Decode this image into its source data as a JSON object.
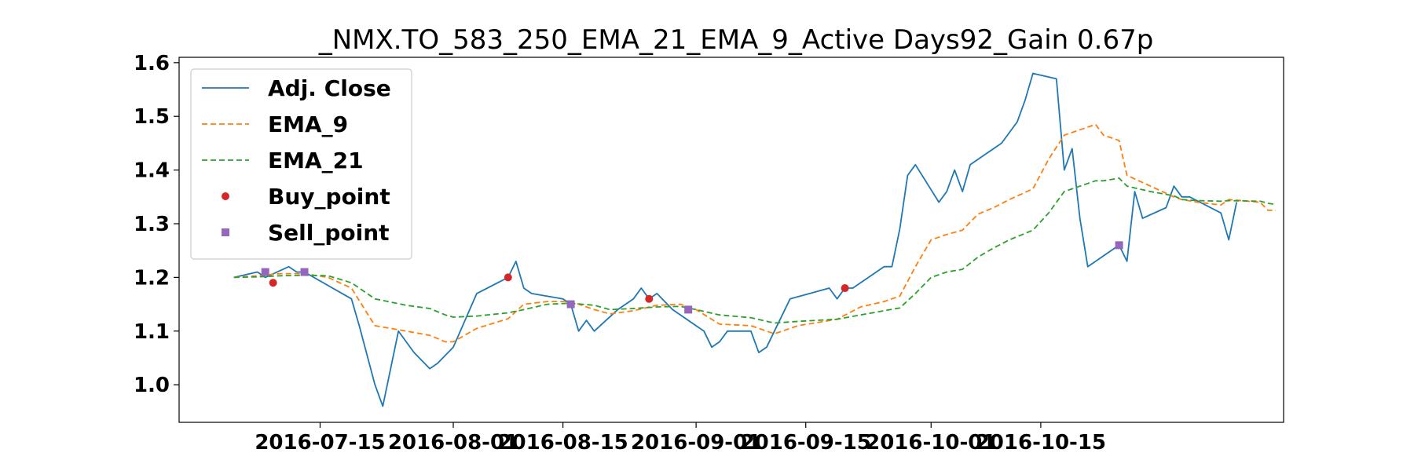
{
  "chart_data": {
    "type": "line",
    "title": "_NMX.TO_583_250_EMA_21_EMA_9_Active Days92_Gain    0.67p",
    "xlabel": "",
    "ylabel": "",
    "x_ticks": [
      "2016-07-15",
      "2016-08-01",
      "2016-08-15",
      "2016-09-01",
      "2016-09-15",
      "2016-10-01",
      "2016-10-15"
    ],
    "y_ticks": [
      "1.0",
      "1.1",
      "1.2",
      "1.3",
      "1.4",
      "1.5",
      "1.6"
    ],
    "xlim": [
      "2016-06-27",
      "2016-11-15"
    ],
    "ylim": [
      0.93,
      1.61
    ],
    "grid": false,
    "legend_position": "upper-left",
    "series": [
      {
        "name": "Adj. Close",
        "color": "#1f77b4",
        "style": "solid",
        "points": [
          [
            "2016-07-04",
            1.2
          ],
          [
            "2016-07-07",
            1.21
          ],
          [
            "2016-07-08",
            1.2
          ],
          [
            "2016-07-11",
            1.22
          ],
          [
            "2016-07-12",
            1.21
          ],
          [
            "2016-07-13",
            1.21
          ],
          [
            "2016-07-19",
            1.16
          ],
          [
            "2016-07-20",
            1.11
          ],
          [
            "2016-07-22",
            1.0
          ],
          [
            "2016-07-23",
            0.96
          ],
          [
            "2016-07-25",
            1.1
          ],
          [
            "2016-07-27",
            1.06
          ],
          [
            "2016-07-29",
            1.03
          ],
          [
            "2016-07-30",
            1.04
          ],
          [
            "2016-08-01",
            1.07
          ],
          [
            "2016-08-04",
            1.17
          ],
          [
            "2016-08-08",
            1.2
          ],
          [
            "2016-08-09",
            1.23
          ],
          [
            "2016-08-10",
            1.18
          ],
          [
            "2016-08-11",
            1.17
          ],
          [
            "2016-08-15",
            1.16
          ],
          [
            "2016-08-16",
            1.15
          ],
          [
            "2016-08-17",
            1.1
          ],
          [
            "2016-08-18",
            1.12
          ],
          [
            "2016-08-19",
            1.1
          ],
          [
            "2016-08-22",
            1.14
          ],
          [
            "2016-08-24",
            1.16
          ],
          [
            "2016-08-25",
            1.18
          ],
          [
            "2016-08-26",
            1.16
          ],
          [
            "2016-08-27",
            1.17
          ],
          [
            "2016-08-29",
            1.14
          ],
          [
            "2016-09-02",
            1.1
          ],
          [
            "2016-09-03",
            1.07
          ],
          [
            "2016-09-04",
            1.08
          ],
          [
            "2016-09-05",
            1.1
          ],
          [
            "2016-09-08",
            1.1
          ],
          [
            "2016-09-09",
            1.06
          ],
          [
            "2016-09-10",
            1.07
          ],
          [
            "2016-09-13",
            1.16
          ],
          [
            "2016-09-18",
            1.18
          ],
          [
            "2016-09-19",
            1.16
          ],
          [
            "2016-09-20",
            1.18
          ],
          [
            "2016-09-21",
            1.18
          ],
          [
            "2016-09-25",
            1.22
          ],
          [
            "2016-09-26",
            1.22
          ],
          [
            "2016-09-27",
            1.29
          ],
          [
            "2016-09-28",
            1.39
          ],
          [
            "2016-09-29",
            1.41
          ],
          [
            "2016-10-02",
            1.34
          ],
          [
            "2016-10-03",
            1.36
          ],
          [
            "2016-10-04",
            1.4
          ],
          [
            "2016-10-05",
            1.36
          ],
          [
            "2016-10-06",
            1.41
          ],
          [
            "2016-10-10",
            1.45
          ],
          [
            "2016-10-12",
            1.49
          ],
          [
            "2016-10-13",
            1.53
          ],
          [
            "2016-10-14",
            1.58
          ],
          [
            "2016-10-17",
            1.57
          ],
          [
            "2016-10-18",
            1.4
          ],
          [
            "2016-10-19",
            1.44
          ],
          [
            "2016-10-20",
            1.31
          ],
          [
            "2016-10-21",
            1.22
          ],
          [
            "2016-10-25",
            1.26
          ],
          [
            "2016-10-26",
            1.23
          ],
          [
            "2016-10-27",
            1.36
          ],
          [
            "2016-10-28",
            1.31
          ],
          [
            "2016-10-31",
            1.33
          ],
          [
            "2016-11-01",
            1.37
          ],
          [
            "2016-11-02",
            1.35
          ],
          [
            "2016-11-03",
            1.35
          ],
          [
            "2016-11-07",
            1.32
          ],
          [
            "2016-11-08",
            1.27
          ],
          [
            "2016-11-09",
            1.34
          ]
        ]
      },
      {
        "name": "EMA_9",
        "color": "#ff7f0e",
        "style": "dashed",
        "points": [
          [
            "2016-07-04",
            1.2
          ],
          [
            "2016-07-07",
            1.203
          ],
          [
            "2016-07-10",
            1.207
          ],
          [
            "2016-07-13",
            1.207
          ],
          [
            "2016-07-16",
            1.2
          ],
          [
            "2016-07-19",
            1.18
          ],
          [
            "2016-07-22",
            1.11
          ],
          [
            "2016-07-26",
            1.1
          ],
          [
            "2016-07-29",
            1.092
          ],
          [
            "2016-07-31",
            1.08
          ],
          [
            "2016-08-01",
            1.08
          ],
          [
            "2016-08-04",
            1.105
          ],
          [
            "2016-08-08",
            1.123
          ],
          [
            "2016-08-10",
            1.15
          ],
          [
            "2016-08-13",
            1.155
          ],
          [
            "2016-08-16",
            1.155
          ],
          [
            "2016-08-19",
            1.14
          ],
          [
            "2016-08-21",
            1.132
          ],
          [
            "2016-08-24",
            1.138
          ],
          [
            "2016-08-27",
            1.148
          ],
          [
            "2016-08-30",
            1.15
          ],
          [
            "2016-09-01",
            1.14
          ],
          [
            "2016-09-04",
            1.113
          ],
          [
            "2016-09-08",
            1.11
          ],
          [
            "2016-09-11",
            1.095
          ],
          [
            "2016-09-14",
            1.11
          ],
          [
            "2016-09-19",
            1.122
          ],
          [
            "2016-09-22",
            1.145
          ],
          [
            "2016-09-25",
            1.155
          ],
          [
            "2016-09-27",
            1.165
          ],
          [
            "2016-09-29",
            1.22
          ],
          [
            "2016-10-01",
            1.27
          ],
          [
            "2016-10-03",
            1.28
          ],
          [
            "2016-10-05",
            1.288
          ],
          [
            "2016-10-07",
            1.318
          ],
          [
            "2016-10-09",
            1.33
          ],
          [
            "2016-10-11",
            1.345
          ],
          [
            "2016-10-14",
            1.365
          ],
          [
            "2016-10-16",
            1.42
          ],
          [
            "2016-10-18",
            1.465
          ],
          [
            "2016-10-21",
            1.48
          ],
          [
            "2016-10-22",
            1.485
          ],
          [
            "2016-10-23",
            1.465
          ],
          [
            "2016-10-25",
            1.455
          ],
          [
            "2016-10-26",
            1.39
          ],
          [
            "2016-10-29",
            1.37
          ],
          [
            "2016-11-01",
            1.35
          ],
          [
            "2016-11-02",
            1.345
          ],
          [
            "2016-11-04",
            1.34
          ],
          [
            "2016-11-07",
            1.335
          ],
          [
            "2016-11-08",
            1.345
          ],
          [
            "2016-11-12",
            1.34
          ],
          [
            "2016-11-13",
            1.325
          ],
          [
            "2016-11-14",
            1.325
          ]
        ]
      },
      {
        "name": "EMA_21",
        "color": "#2ca02c",
        "style": "dashed",
        "points": [
          [
            "2016-07-04",
            1.2
          ],
          [
            "2016-07-07",
            1.201
          ],
          [
            "2016-07-10",
            1.203
          ],
          [
            "2016-07-13",
            1.204
          ],
          [
            "2016-07-16",
            1.203
          ],
          [
            "2016-07-19",
            1.19
          ],
          [
            "2016-07-22",
            1.16
          ],
          [
            "2016-07-26",
            1.148
          ],
          [
            "2016-07-29",
            1.142
          ],
          [
            "2016-07-31",
            1.13
          ],
          [
            "2016-08-01",
            1.126
          ],
          [
            "2016-08-04",
            1.128
          ],
          [
            "2016-08-08",
            1.134
          ],
          [
            "2016-08-10",
            1.14
          ],
          [
            "2016-08-13",
            1.15
          ],
          [
            "2016-08-16",
            1.152
          ],
          [
            "2016-08-19",
            1.148
          ],
          [
            "2016-08-21",
            1.14
          ],
          [
            "2016-08-24",
            1.142
          ],
          [
            "2016-08-27",
            1.145
          ],
          [
            "2016-08-30",
            1.146
          ],
          [
            "2016-09-01",
            1.14
          ],
          [
            "2016-09-04",
            1.13
          ],
          [
            "2016-09-08",
            1.125
          ],
          [
            "2016-09-11",
            1.115
          ],
          [
            "2016-09-14",
            1.118
          ],
          [
            "2016-09-19",
            1.122
          ],
          [
            "2016-09-22",
            1.13
          ],
          [
            "2016-09-25",
            1.138
          ],
          [
            "2016-09-27",
            1.143
          ],
          [
            "2016-09-29",
            1.17
          ],
          [
            "2016-10-01",
            1.2
          ],
          [
            "2016-10-03",
            1.21
          ],
          [
            "2016-10-05",
            1.215
          ],
          [
            "2016-10-07",
            1.238
          ],
          [
            "2016-10-09",
            1.255
          ],
          [
            "2016-10-11",
            1.27
          ],
          [
            "2016-10-14",
            1.288
          ],
          [
            "2016-10-16",
            1.32
          ],
          [
            "2016-10-18",
            1.36
          ],
          [
            "2016-10-21",
            1.375
          ],
          [
            "2016-10-22",
            1.38
          ],
          [
            "2016-10-23",
            1.38
          ],
          [
            "2016-10-25",
            1.385
          ],
          [
            "2016-10-26",
            1.37
          ],
          [
            "2016-10-29",
            1.36
          ],
          [
            "2016-11-01",
            1.352
          ],
          [
            "2016-11-02",
            1.345
          ],
          [
            "2016-11-04",
            1.343
          ],
          [
            "2016-11-07",
            1.342
          ],
          [
            "2016-11-08",
            1.343
          ],
          [
            "2016-11-12",
            1.342
          ],
          [
            "2016-11-13",
            1.338
          ],
          [
            "2016-11-14",
            1.336
          ]
        ]
      },
      {
        "name": "Buy_point",
        "color": "#d62728",
        "style": "marker-circle",
        "points": [
          [
            "2016-07-09",
            1.19
          ],
          [
            "2016-08-08",
            1.2
          ],
          [
            "2016-08-26",
            1.16
          ],
          [
            "2016-09-20",
            1.18
          ]
        ]
      },
      {
        "name": "Sell_point",
        "color": "#9467bd",
        "style": "marker-square",
        "points": [
          [
            "2016-07-08",
            1.21
          ],
          [
            "2016-07-13",
            1.21
          ],
          [
            "2016-08-16",
            1.15
          ],
          [
            "2016-08-31",
            1.14
          ],
          [
            "2016-10-25",
            1.26
          ]
        ]
      }
    ]
  }
}
